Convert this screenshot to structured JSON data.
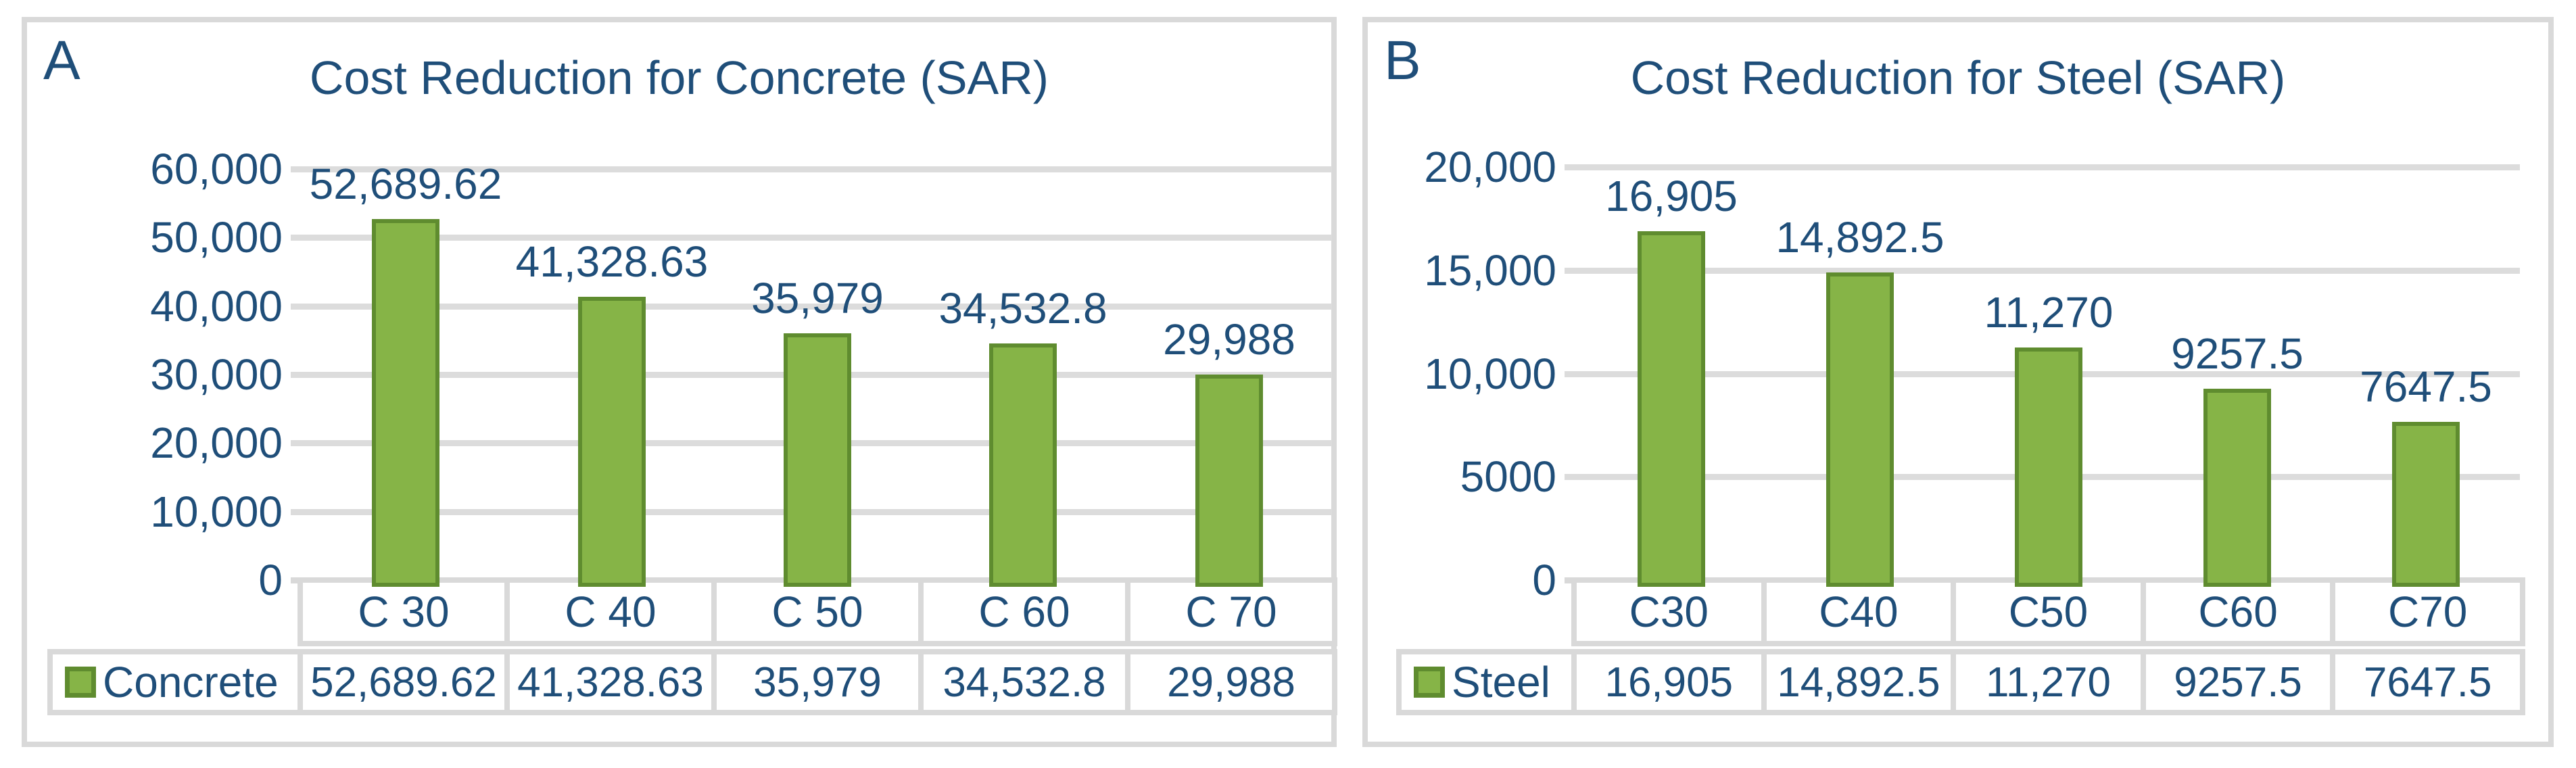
{
  "figure": {
    "background": "#ffffff",
    "description_colors": {
      "text_navy": "#1f4e79",
      "bar_fill": "#86b447",
      "bar_border": "#5f8c2f",
      "gridline": "#dcdcdc",
      "table_border": "#d9d9d9"
    }
  },
  "chart_data": [
    {
      "type": "bar",
      "panel_label": "A",
      "title": "Cost Reduction for Concrete (SAR)",
      "categories": [
        "C 30",
        "C 40",
        "C 50",
        "C 60",
        "C 70"
      ],
      "series": [
        {
          "name": "Concrete",
          "values": [
            52689.62,
            41328.63,
            35979,
            34532.8,
            29988
          ]
        }
      ],
      "data_labels": [
        "52,689.62",
        "41,328.63",
        "35,979",
        "34,532.8",
        "29,988"
      ],
      "table_values": [
        "52,689.62",
        "41,328.63",
        "35,979",
        "34,532.8",
        "29,988"
      ],
      "legend_label": "Concrete",
      "xlabel": "",
      "ylabel": "",
      "ylim": [
        0,
        60000
      ],
      "ytick_labels": [
        "60,000",
        "50,000",
        "40,000",
        "30,000",
        "20,000",
        "10,000",
        "0"
      ],
      "grid": true,
      "legend_position": "data-table-left",
      "bar_color": "#86b447",
      "bar_border_color": "#5f8c2f"
    },
    {
      "type": "bar",
      "panel_label": "B",
      "title": "Cost Reduction for Steel (SAR)",
      "categories": [
        "C30",
        "C40",
        "C50",
        "C60",
        "C70"
      ],
      "series": [
        {
          "name": "Steel",
          "values": [
            16905,
            14892.5,
            11270,
            9257.5,
            7647.5
          ]
        }
      ],
      "data_labels": [
        "16,905",
        "14,892.5",
        "11,270",
        "9257.5",
        "7647.5"
      ],
      "table_values": [
        "16,905",
        "14,892.5",
        "11,270",
        "9257.5",
        "7647.5"
      ],
      "legend_label": "Steel",
      "xlabel": "",
      "ylabel": "",
      "ylim": [
        0,
        20000
      ],
      "ytick_labels": [
        "20,000",
        "15,000",
        "10,000",
        "5000",
        "0"
      ],
      "grid": true,
      "legend_position": "data-table-left",
      "bar_color": "#86b447",
      "bar_border_color": "#5f8c2f"
    }
  ]
}
